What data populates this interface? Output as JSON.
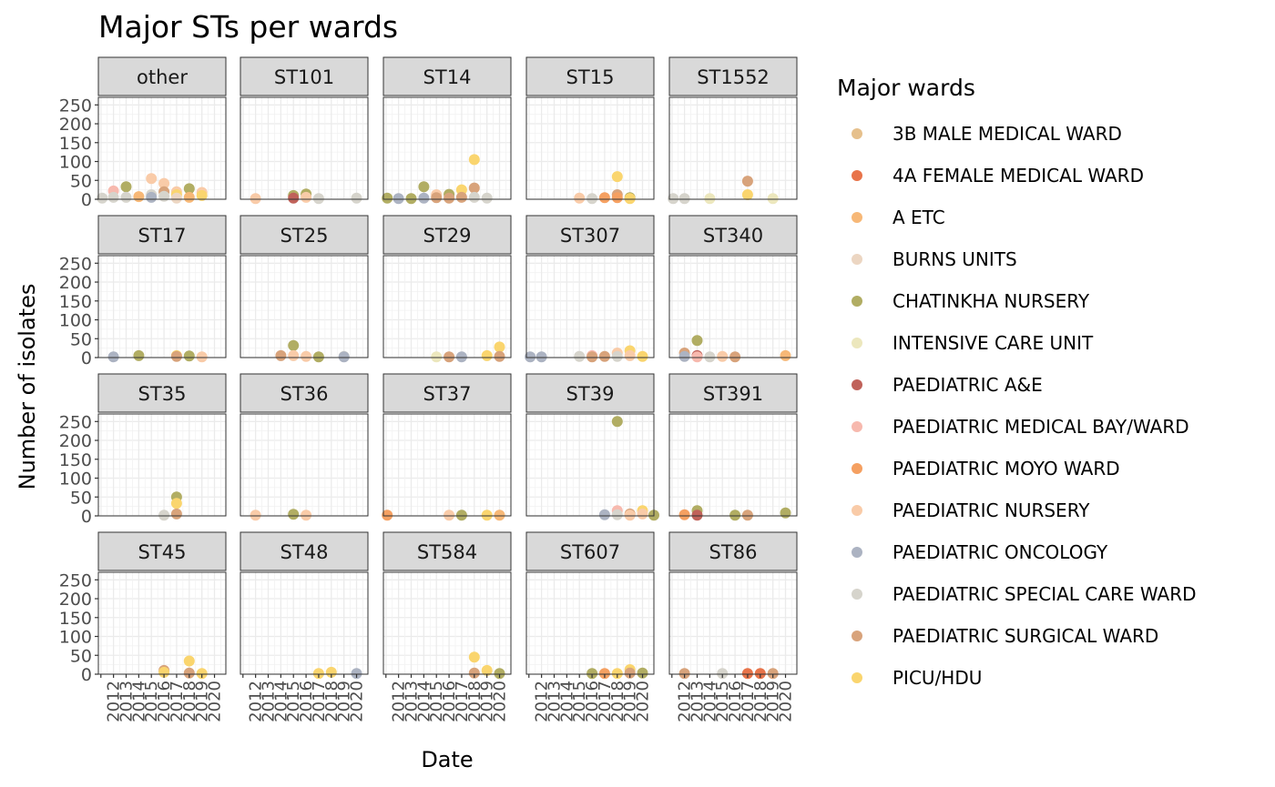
{
  "chart_data": {
    "type": "scatter",
    "title": "Major STs per wards",
    "xlabel": "Date",
    "ylabel": "Number of isolates",
    "ylim": [
      0,
      270
    ],
    "y_ticks": [
      0,
      50,
      100,
      150,
      200,
      250
    ],
    "xlim": [
      2010.8,
      2020.9
    ],
    "x_tick_labels": [
      "2012",
      "2013",
      "2014",
      "2015",
      "2016",
      "2017",
      "2018",
      "2019",
      "2020"
    ],
    "grid": true,
    "legend": {
      "title": "Major wards",
      "position": "right",
      "entries": [
        {
          "name": "3B MALE MEDICAL WARD",
          "color": "#e6c08c"
        },
        {
          "name": "4A FEMALE MEDICAL WARD",
          "color": "#e8744a"
        },
        {
          "name": "A ETC",
          "color": "#f7b877"
        },
        {
          "name": "BURNS UNITS",
          "color": "#ecd6c2"
        },
        {
          "name": "CHATINKHA NURSERY",
          "color": "#b1ad63"
        },
        {
          "name": "INTENSIVE CARE UNIT",
          "color": "#ece7bd"
        },
        {
          "name": "PAEDIATRIC A&E",
          "color": "#c0625a"
        },
        {
          "name": "PAEDIATRIC MEDICAL BAY/WARD",
          "color": "#f7b9ae"
        },
        {
          "name": "PAEDIATRIC MOYO WARD",
          "color": "#f5a061"
        },
        {
          "name": "PAEDIATRIC NURSERY",
          "color": "#f9cba8"
        },
        {
          "name": "PAEDIATRIC ONCOLOGY",
          "color": "#acb3c2"
        },
        {
          "name": "PAEDIATRIC SPECIAL CARE WARD",
          "color": "#d6d4cc"
        },
        {
          "name": "PAEDIATRIC SURGICAL WARD",
          "color": "#d8a37b"
        },
        {
          "name": "PICU/HDU",
          "color": "#fad56e"
        }
      ]
    },
    "panels": [
      {
        "label": "other",
        "points": [
          {
            "x": 2011.1,
            "y": 3,
            "ward": "PAEDIATRIC SPECIAL CARE WARD"
          },
          {
            "x": 2012,
            "y": 22,
            "ward": "PAEDIATRIC MEDICAL BAY/WARD"
          },
          {
            "x": 2012,
            "y": 5,
            "ward": "PAEDIATRIC SPECIAL CARE WARD"
          },
          {
            "x": 2013,
            "y": 33,
            "ward": "CHATINKHA NURSERY"
          },
          {
            "x": 2013,
            "y": 5,
            "ward": "PAEDIATRIC SPECIAL CARE WARD"
          },
          {
            "x": 2014,
            "y": 7,
            "ward": "A ETC"
          },
          {
            "x": 2015,
            "y": 55,
            "ward": "PAEDIATRIC NURSERY"
          },
          {
            "x": 2015,
            "y": 12,
            "ward": "PAEDIATRIC SPECIAL CARE WARD"
          },
          {
            "x": 2015,
            "y": 5,
            "ward": "PAEDIATRIC ONCOLOGY"
          },
          {
            "x": 2016,
            "y": 42,
            "ward": "PAEDIATRIC NURSERY"
          },
          {
            "x": 2016,
            "y": 20,
            "ward": "PAEDIATRIC SURGICAL WARD"
          },
          {
            "x": 2016,
            "y": 8,
            "ward": "PAEDIATRIC SPECIAL CARE WARD"
          },
          {
            "x": 2017,
            "y": 20,
            "ward": "PAEDIATRIC NURSERY"
          },
          {
            "x": 2017,
            "y": 12,
            "ward": "PICU/HDU"
          },
          {
            "x": 2017,
            "y": 3,
            "ward": "BURNS UNITS"
          },
          {
            "x": 2018,
            "y": 28,
            "ward": "CHATINKHA NURSERY"
          },
          {
            "x": 2018,
            "y": 5,
            "ward": "A ETC"
          },
          {
            "x": 2019,
            "y": 18,
            "ward": "PAEDIATRIC NURSERY"
          },
          {
            "x": 2019,
            "y": 10,
            "ward": "PICU/HDU"
          }
        ]
      },
      {
        "label": "ST101",
        "points": [
          {
            "x": 2012,
            "y": 2,
            "ward": "PAEDIATRIC NURSERY"
          },
          {
            "x": 2015,
            "y": 10,
            "ward": "CHATINKHA NURSERY"
          },
          {
            "x": 2015,
            "y": 3,
            "ward": "PAEDIATRIC A&E"
          },
          {
            "x": 2016,
            "y": 14,
            "ward": "CHATINKHA NURSERY"
          },
          {
            "x": 2016,
            "y": 5,
            "ward": "PAEDIATRIC NURSERY"
          },
          {
            "x": 2017,
            "y": 2,
            "ward": "PAEDIATRIC SPECIAL CARE WARD"
          },
          {
            "x": 2020,
            "y": 3,
            "ward": "PAEDIATRIC SPECIAL CARE WARD"
          }
        ]
      },
      {
        "label": "ST14",
        "points": [
          {
            "x": 2011.1,
            "y": 3,
            "ward": "CHATINKHA NURSERY"
          },
          {
            "x": 2012,
            "y": 2,
            "ward": "PAEDIATRIC ONCOLOGY"
          },
          {
            "x": 2013,
            "y": 2,
            "ward": "CHATINKHA NURSERY"
          },
          {
            "x": 2014,
            "y": 33,
            "ward": "CHATINKHA NURSERY"
          },
          {
            "x": 2014,
            "y": 3,
            "ward": "PAEDIATRIC ONCOLOGY"
          },
          {
            "x": 2015,
            "y": 12,
            "ward": "PAEDIATRIC NURSERY"
          },
          {
            "x": 2015,
            "y": 4,
            "ward": "PAEDIATRIC SURGICAL WARD"
          },
          {
            "x": 2016,
            "y": 13,
            "ward": "CHATINKHA NURSERY"
          },
          {
            "x": 2016,
            "y": 3,
            "ward": "PAEDIATRIC SURGICAL WARD"
          },
          {
            "x": 2017,
            "y": 25,
            "ward": "PICU/HDU"
          },
          {
            "x": 2017,
            "y": 5,
            "ward": "PAEDIATRIC SURGICAL WARD"
          },
          {
            "x": 2018,
            "y": 105,
            "ward": "PICU/HDU"
          },
          {
            "x": 2018,
            "y": 30,
            "ward": "PAEDIATRIC SURGICAL WARD"
          },
          {
            "x": 2018,
            "y": 5,
            "ward": "PAEDIATRIC SPECIAL CARE WARD"
          },
          {
            "x": 2019,
            "y": 3,
            "ward": "PAEDIATRIC SPECIAL CARE WARD"
          }
        ]
      },
      {
        "label": "ST15",
        "points": [
          {
            "x": 2015,
            "y": 3,
            "ward": "PAEDIATRIC NURSERY"
          },
          {
            "x": 2016,
            "y": 2,
            "ward": "PAEDIATRIC SPECIAL CARE WARD"
          },
          {
            "x": 2017,
            "y": 4,
            "ward": "PAEDIATRIC MOYO WARD"
          },
          {
            "x": 2018,
            "y": 60,
            "ward": "PICU/HDU"
          },
          {
            "x": 2018,
            "y": 12,
            "ward": "PAEDIATRIC SURGICAL WARD"
          },
          {
            "x": 2018,
            "y": 4,
            "ward": "PAEDIATRIC MOYO WARD"
          },
          {
            "x": 2019,
            "y": 4,
            "ward": "CHATINKHA NURSERY"
          },
          {
            "x": 2019,
            "y": 2,
            "ward": "PICU/HDU"
          }
        ]
      },
      {
        "label": "ST1552",
        "points": [
          {
            "x": 2011.1,
            "y": 2,
            "ward": "PAEDIATRIC SPECIAL CARE WARD"
          },
          {
            "x": 2012,
            "y": 2,
            "ward": "PAEDIATRIC SPECIAL CARE WARD"
          },
          {
            "x": 2014,
            "y": 2,
            "ward": "INTENSIVE CARE UNIT"
          },
          {
            "x": 2017,
            "y": 48,
            "ward": "PAEDIATRIC SURGICAL WARD"
          },
          {
            "x": 2017,
            "y": 12,
            "ward": "PICU/HDU"
          },
          {
            "x": 2019,
            "y": 2,
            "ward": "INTENSIVE CARE UNIT"
          }
        ]
      },
      {
        "label": "ST17",
        "points": [
          {
            "x": 2012,
            "y": 2,
            "ward": "PAEDIATRIC ONCOLOGY"
          },
          {
            "x": 2014,
            "y": 5,
            "ward": "CHATINKHA NURSERY"
          },
          {
            "x": 2017,
            "y": 5,
            "ward": "PICU/HDU"
          },
          {
            "x": 2017,
            "y": 3,
            "ward": "PAEDIATRIC SURGICAL WARD"
          },
          {
            "x": 2018,
            "y": 4,
            "ward": "CHATINKHA NURSERY"
          },
          {
            "x": 2019,
            "y": 2,
            "ward": "PAEDIATRIC NURSERY"
          }
        ]
      },
      {
        "label": "ST25",
        "points": [
          {
            "x": 2014,
            "y": 5,
            "ward": "PAEDIATRIC SURGICAL WARD"
          },
          {
            "x": 2015,
            "y": 32,
            "ward": "CHATINKHA NURSERY"
          },
          {
            "x": 2015,
            "y": 5,
            "ward": "PAEDIATRIC NURSERY"
          },
          {
            "x": 2016,
            "y": 3,
            "ward": "PAEDIATRIC NURSERY"
          },
          {
            "x": 2017,
            "y": 2,
            "ward": "CHATINKHA NURSERY"
          },
          {
            "x": 2019,
            "y": 3,
            "ward": "PAEDIATRIC SPECIAL CARE WARD"
          },
          {
            "x": 2019,
            "y": 2,
            "ward": "PAEDIATRIC ONCOLOGY"
          }
        ]
      },
      {
        "label": "ST29",
        "points": [
          {
            "x": 2015,
            "y": 2,
            "ward": "INTENSIVE CARE UNIT"
          },
          {
            "x": 2016,
            "y": 2,
            "ward": "PAEDIATRIC SURGICAL WARD"
          },
          {
            "x": 2017,
            "y": 2,
            "ward": "PAEDIATRIC ONCOLOGY"
          },
          {
            "x": 2019,
            "y": 5,
            "ward": "PICU/HDU"
          },
          {
            "x": 2020,
            "y": 28,
            "ward": "PICU/HDU"
          },
          {
            "x": 2020,
            "y": 3,
            "ward": "PAEDIATRIC SURGICAL WARD"
          }
        ]
      },
      {
        "label": "ST307",
        "points": [
          {
            "x": 2011.1,
            "y": 2,
            "ward": "PAEDIATRIC ONCOLOGY"
          },
          {
            "x": 2012,
            "y": 2,
            "ward": "PAEDIATRIC ONCOLOGY"
          },
          {
            "x": 2015,
            "y": 3,
            "ward": "PAEDIATRIC SPECIAL CARE WARD"
          },
          {
            "x": 2016,
            "y": 5,
            "ward": "PAEDIATRIC MEDICAL BAY/WARD"
          },
          {
            "x": 2016,
            "y": 2,
            "ward": "PAEDIATRIC SURGICAL WARD"
          },
          {
            "x": 2017,
            "y": 3,
            "ward": "PAEDIATRIC SURGICAL WARD"
          },
          {
            "x": 2018,
            "y": 12,
            "ward": "PAEDIATRIC NURSERY"
          },
          {
            "x": 2018,
            "y": 3,
            "ward": "PAEDIATRIC SPECIAL CARE WARD"
          },
          {
            "x": 2019,
            "y": 18,
            "ward": "PICU/HDU"
          },
          {
            "x": 2019,
            "y": 5,
            "ward": "PAEDIATRIC NURSERY"
          },
          {
            "x": 2020,
            "y": 3,
            "ward": "PICU/HDU"
          }
        ]
      },
      {
        "label": "ST340",
        "points": [
          {
            "x": 2012,
            "y": 12,
            "ward": "PAEDIATRIC SURGICAL WARD"
          },
          {
            "x": 2012,
            "y": 3,
            "ward": "PAEDIATRIC ONCOLOGY"
          },
          {
            "x": 2013,
            "y": 45,
            "ward": "CHATINKHA NURSERY"
          },
          {
            "x": 2013,
            "y": 5,
            "ward": "PAEDIATRIC A&E"
          },
          {
            "x": 2013,
            "y": 2,
            "ward": "PAEDIATRIC MEDICAL BAY/WARD"
          },
          {
            "x": 2014,
            "y": 2,
            "ward": "PAEDIATRIC SPECIAL CARE WARD"
          },
          {
            "x": 2015,
            "y": 3,
            "ward": "PAEDIATRIC NURSERY"
          },
          {
            "x": 2016,
            "y": 2,
            "ward": "PAEDIATRIC SURGICAL WARD"
          },
          {
            "x": 2020,
            "y": 5,
            "ward": "A ETC"
          }
        ]
      },
      {
        "label": "ST35",
        "points": [
          {
            "x": 2016,
            "y": 2,
            "ward": "PAEDIATRIC SPECIAL CARE WARD"
          },
          {
            "x": 2017,
            "y": 50,
            "ward": "CHATINKHA NURSERY"
          },
          {
            "x": 2017,
            "y": 33,
            "ward": "PICU/HDU"
          },
          {
            "x": 2017,
            "y": 5,
            "ward": "PAEDIATRIC SURGICAL WARD"
          }
        ]
      },
      {
        "label": "ST36",
        "points": [
          {
            "x": 2012,
            "y": 2,
            "ward": "PAEDIATRIC NURSERY"
          },
          {
            "x": 2015,
            "y": 4,
            "ward": "CHATINKHA NURSERY"
          },
          {
            "x": 2016,
            "y": 2,
            "ward": "PAEDIATRIC NURSERY"
          }
        ]
      },
      {
        "label": "ST37",
        "points": [
          {
            "x": 2011.1,
            "y": 2,
            "ward": "PAEDIATRIC MOYO WARD"
          },
          {
            "x": 2016,
            "y": 2,
            "ward": "PAEDIATRIC NURSERY"
          },
          {
            "x": 2017,
            "y": 2,
            "ward": "CHATINKHA NURSERY"
          },
          {
            "x": 2019,
            "y": 2,
            "ward": "PICU/HDU"
          },
          {
            "x": 2020,
            "y": 2,
            "ward": "A ETC"
          }
        ]
      },
      {
        "label": "ST39",
        "points": [
          {
            "x": 2017,
            "y": 3,
            "ward": "PAEDIATRIC ONCOLOGY"
          },
          {
            "x": 2018,
            "y": 250,
            "ward": "CHATINKHA NURSERY"
          },
          {
            "x": 2018,
            "y": 14,
            "ward": "PAEDIATRIC MEDICAL BAY/WARD"
          },
          {
            "x": 2018,
            "y": 3,
            "ward": "PAEDIATRIC SPECIAL CARE WARD"
          },
          {
            "x": 2019,
            "y": 5,
            "ward": "PAEDIATRIC SURGICAL WARD"
          },
          {
            "x": 2019,
            "y": 2,
            "ward": "PAEDIATRIC NURSERY"
          },
          {
            "x": 2020,
            "y": 14,
            "ward": "PICU/HDU"
          },
          {
            "x": 2020,
            "y": 5,
            "ward": "PAEDIATRIC NURSERY"
          },
          {
            "x": 2020.9,
            "y": 2,
            "ward": "CHATINKHA NURSERY"
          }
        ]
      },
      {
        "label": "ST391",
        "points": [
          {
            "x": 2012,
            "y": 3,
            "ward": "PAEDIATRIC MOYO WARD"
          },
          {
            "x": 2013,
            "y": 14,
            "ward": "CHATINKHA NURSERY"
          },
          {
            "x": 2013,
            "y": 2,
            "ward": "PAEDIATRIC A&E"
          },
          {
            "x": 2016,
            "y": 2,
            "ward": "CHATINKHA NURSERY"
          },
          {
            "x": 2017,
            "y": 2,
            "ward": "PAEDIATRIC SURGICAL WARD"
          },
          {
            "x": 2020,
            "y": 8,
            "ward": "CHATINKHA NURSERY"
          }
        ]
      },
      {
        "label": "ST45",
        "points": [
          {
            "x": 2016,
            "y": 10,
            "ward": "PAEDIATRIC SURGICAL WARD"
          },
          {
            "x": 2016,
            "y": 5,
            "ward": "PICU/HDU"
          },
          {
            "x": 2018,
            "y": 35,
            "ward": "PICU/HDU"
          },
          {
            "x": 2018,
            "y": 3,
            "ward": "PAEDIATRIC SURGICAL WARD"
          },
          {
            "x": 2019,
            "y": 2,
            "ward": "PICU/HDU"
          }
        ]
      },
      {
        "label": "ST48",
        "points": [
          {
            "x": 2017,
            "y": 2,
            "ward": "PICU/HDU"
          },
          {
            "x": 2018,
            "y": 5,
            "ward": "PICU/HDU"
          },
          {
            "x": 2020,
            "y": 2,
            "ward": "PAEDIATRIC ONCOLOGY"
          }
        ]
      },
      {
        "label": "ST584",
        "points": [
          {
            "x": 2018,
            "y": 45,
            "ward": "PICU/HDU"
          },
          {
            "x": 2018,
            "y": 3,
            "ward": "PAEDIATRIC SURGICAL WARD"
          },
          {
            "x": 2019,
            "y": 10,
            "ward": "PICU/HDU"
          },
          {
            "x": 2020,
            "y": 2,
            "ward": "CHATINKHA NURSERY"
          }
        ]
      },
      {
        "label": "ST607",
        "points": [
          {
            "x": 2016,
            "y": 2,
            "ward": "CHATINKHA NURSERY"
          },
          {
            "x": 2017,
            "y": 2,
            "ward": "PAEDIATRIC MOYO WARD"
          },
          {
            "x": 2018,
            "y": 2,
            "ward": "PICU/HDU"
          },
          {
            "x": 2019,
            "y": 12,
            "ward": "PICU/HDU"
          },
          {
            "x": 2019,
            "y": 3,
            "ward": "PAEDIATRIC SURGICAL WARD"
          },
          {
            "x": 2020,
            "y": 3,
            "ward": "CHATINKHA NURSERY"
          }
        ]
      },
      {
        "label": "ST86",
        "points": [
          {
            "x": 2012,
            "y": 2,
            "ward": "PAEDIATRIC SURGICAL WARD"
          },
          {
            "x": 2015,
            "y": 2,
            "ward": "PAEDIATRIC SPECIAL CARE WARD"
          },
          {
            "x": 2017,
            "y": 2,
            "ward": "4A FEMALE MEDICAL WARD"
          },
          {
            "x": 2018,
            "y": 2,
            "ward": "4A FEMALE MEDICAL WARD"
          },
          {
            "x": 2019,
            "y": 2,
            "ward": "PAEDIATRIC SURGICAL WARD"
          }
        ]
      }
    ]
  }
}
